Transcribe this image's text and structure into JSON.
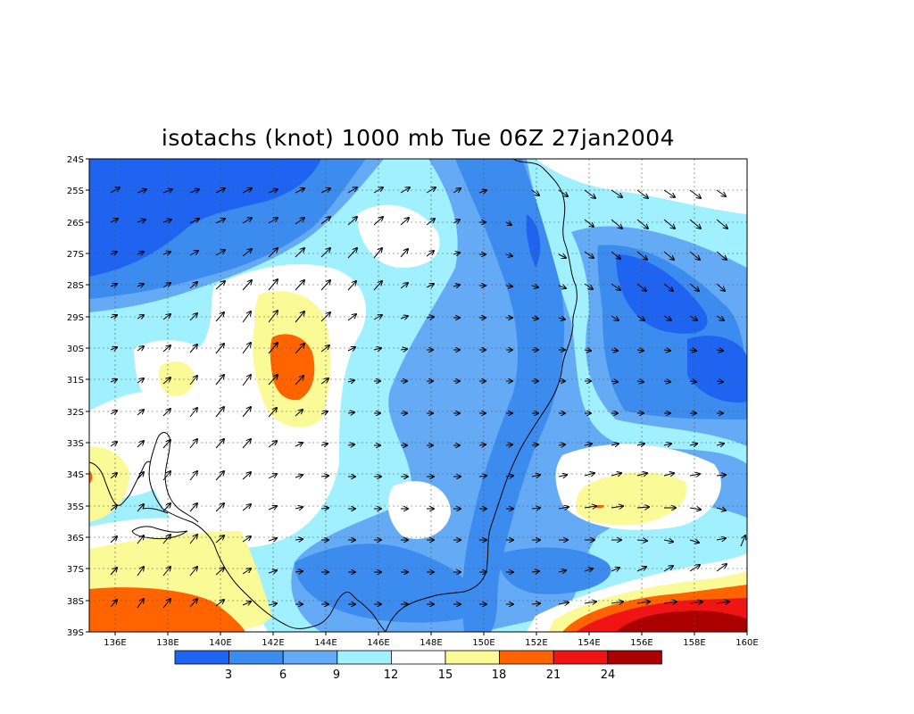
{
  "title": "isotachs (knot) 1000 mb Tue 06Z 27jan2004",
  "lat_labels": [
    "24S",
    "25S",
    "26S",
    "27S",
    "28S",
    "29S",
    "30S",
    "31S",
    "32S",
    "33S",
    "34S",
    "35S",
    "36S",
    "37S",
    "38S",
    "39S"
  ],
  "lon_labels": [
    "136E",
    "138E",
    "140E",
    "142E",
    "144E",
    "146E",
    "148E",
    "150E",
    "152E",
    "154E",
    "156E",
    "158E",
    "160E"
  ],
  "colorbar": {
    "labels": [
      "3",
      "6",
      "9",
      "12",
      "15",
      "18",
      "21",
      "24"
    ],
    "colors": [
      "#1e64f0",
      "#3c8cf0",
      "#64aaf5",
      "#a0f0ff",
      "#ffffff",
      "#fafa96",
      "#ff6400",
      "#f01414",
      "#aa0000"
    ]
  },
  "legend_colors": {
    "lt3": "#1e64f0",
    "3-6": "#3c8cf0",
    "6-9": "#64aaf5",
    "9-12": "#a0f0ff",
    "12-15": "#ffffff",
    "15-18": "#fafa96",
    "18-21": "#ff6400",
    "21-24": "#f01414",
    "gt24": "#aa0000"
  }
}
